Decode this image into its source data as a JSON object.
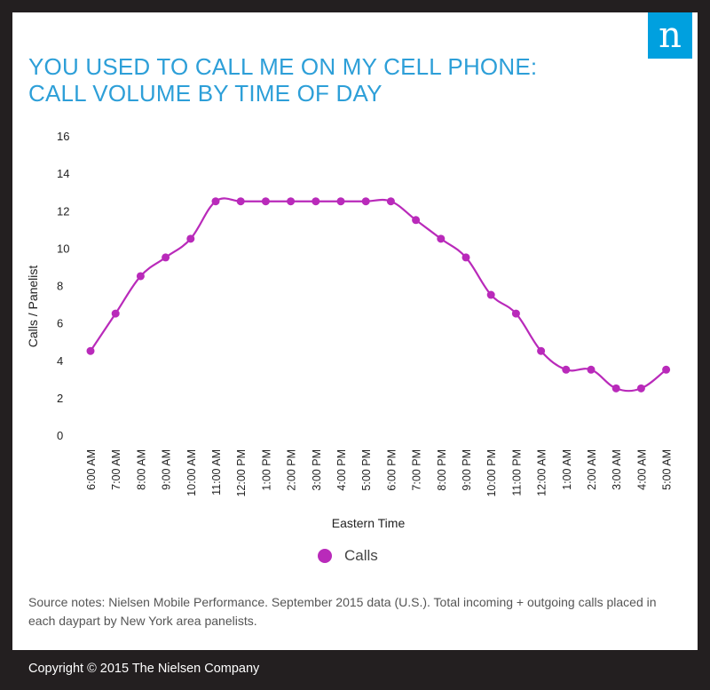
{
  "header": {
    "title_line1": "YOU USED TO CALL ME ON MY CELL PHONE:",
    "title_line2": "CALL VOLUME BY TIME OF DAY",
    "logo_letter": "n"
  },
  "colors": {
    "title": "#2d9fd8",
    "series": "#b92aba",
    "logo_bg": "#00a0df",
    "frame": "#231f20"
  },
  "chart_data": {
    "type": "line",
    "title": "YOU USED TO CALL ME ON MY CELL PHONE: CALL VOLUME BY TIME OF DAY",
    "xlabel": "Eastern Time",
    "ylabel": "Calls / Panelist",
    "ylim": [
      0,
      16
    ],
    "yticks": [
      "16",
      "14",
      "12",
      "10",
      "8",
      "6",
      "4",
      "2",
      "0"
    ],
    "categories": [
      "6:00 AM",
      "7:00 AM",
      "8:00 AM",
      "9:00 AM",
      "10:00 AM",
      "11:00 AM",
      "12:00 PM",
      "1:00 PM",
      "2:00 PM",
      "3:00 PM",
      "4:00 PM",
      "5:00 PM",
      "6:00 PM",
      "7:00 PM",
      "8:00 PM",
      "9:00 PM",
      "10:00 PM",
      "11:00 PM",
      "12:00 AM",
      "1:00 AM",
      "2:00 AM",
      "3:00 AM",
      "4:00 AM",
      "5:00 AM"
    ],
    "series": [
      {
        "name": "Calls",
        "values": [
          4.5,
          6.5,
          8.5,
          9.5,
          10.5,
          12.5,
          12.5,
          12.5,
          12.5,
          12.5,
          12.5,
          12.5,
          12.5,
          11.5,
          10.5,
          9.5,
          7.5,
          6.5,
          4.5,
          3.5,
          3.5,
          2.5,
          2.5,
          3.5
        ]
      }
    ],
    "grid": false,
    "legend": "bottom-center"
  },
  "legend": {
    "label": "Calls"
  },
  "source_notes": "Source notes: Nielsen Mobile Performance. September 2015 data (U.S.). Total incoming + outgoing calls placed in each daypart by New York area panelists.",
  "footer": {
    "copyright": "Copyright © 2015 The Nielsen Company"
  }
}
